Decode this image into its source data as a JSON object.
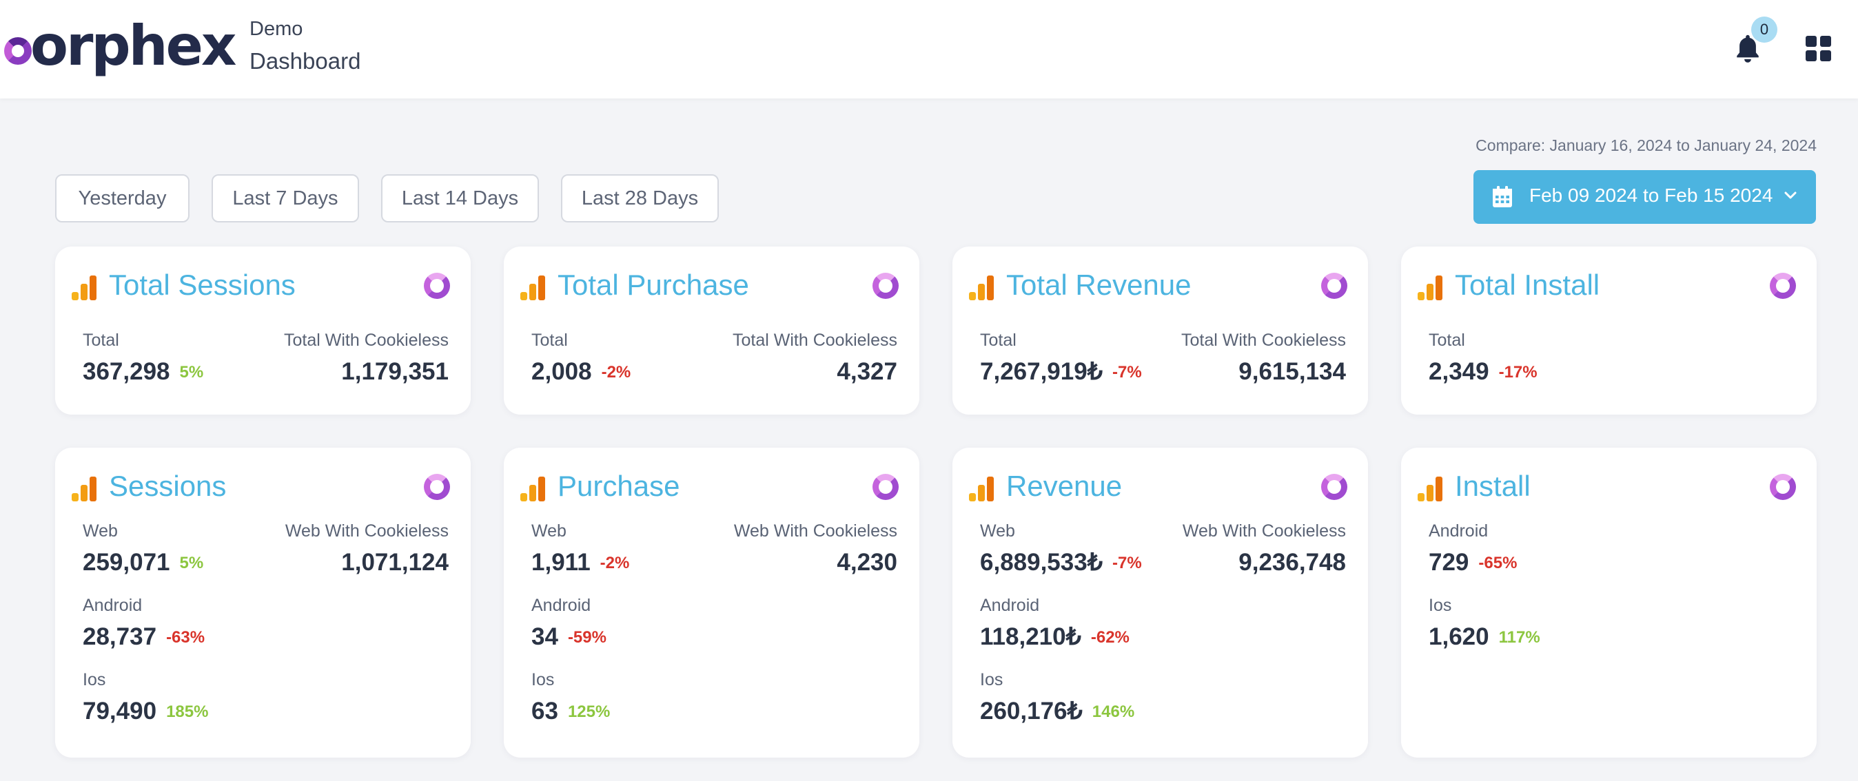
{
  "header": {
    "logo_text": "orphex",
    "breadcrumb_top": "Demo",
    "breadcrumb_main": "Dashboard",
    "notification_count": "0"
  },
  "compare_text": "Compare: January 16, 2024 to January 24, 2024",
  "filters": {
    "yesterday": "Yesterday",
    "last7": "Last 7 Days",
    "last14": "Last 14 Days",
    "last28": "Last 28 Days"
  },
  "date_range": "Feb 09 2024 to Feb 15 2024",
  "colors": {
    "accent": "#4cb4e0",
    "positive": "#8cc63f",
    "negative": "#d9342b",
    "text": "#2b3445"
  },
  "top_cards": [
    {
      "title": "Total Sessions",
      "left_label": "Total",
      "left_value": "367,298",
      "left_change": "5%",
      "right_label": "Total With Cookieless",
      "right_value": "1,179,351"
    },
    {
      "title": "Total Purchase",
      "left_label": "Total",
      "left_value": "2,008",
      "left_change": "-2%",
      "right_label": "Total With Cookieless",
      "right_value": "4,327"
    },
    {
      "title": "Total Revenue",
      "left_label": "Total",
      "left_value": "7,267,919₺",
      "left_change": "-7%",
      "right_label": "Total With Cookieless",
      "right_value": "9,615,134"
    },
    {
      "title": "Total Install",
      "left_label": "Total",
      "left_value": "2,349",
      "left_change": "-17%"
    }
  ],
  "bottom_cards": [
    {
      "title": "Sessions",
      "right_label": "Web With Cookieless",
      "right_value": "1,071,124",
      "rows": [
        {
          "label": "Web",
          "value": "259,071",
          "change": "5%"
        },
        {
          "label": "Android",
          "value": "28,737",
          "change": "-63%"
        },
        {
          "label": "Ios",
          "value": "79,490",
          "change": "185%"
        }
      ]
    },
    {
      "title": "Purchase",
      "right_label": "Web With Cookieless",
      "right_value": "4,230",
      "rows": [
        {
          "label": "Web",
          "value": "1,911",
          "change": "-2%"
        },
        {
          "label": "Android",
          "value": "34",
          "change": "-59%"
        },
        {
          "label": "Ios",
          "value": "63",
          "change": "125%"
        }
      ]
    },
    {
      "title": "Revenue",
      "right_label": "Web With Cookieless",
      "right_value": "9,236,748",
      "rows": [
        {
          "label": "Web",
          "value": "6,889,533₺",
          "change": "-7%"
        },
        {
          "label": "Android",
          "value": "118,210₺",
          "change": "-62%"
        },
        {
          "label": "Ios",
          "value": "260,176₺",
          "change": "146%"
        }
      ]
    },
    {
      "title": "Install",
      "rows": [
        {
          "label": "Android",
          "value": "729",
          "change": "-65%"
        },
        {
          "label": "Ios",
          "value": "1,620",
          "change": "117%"
        }
      ]
    }
  ]
}
